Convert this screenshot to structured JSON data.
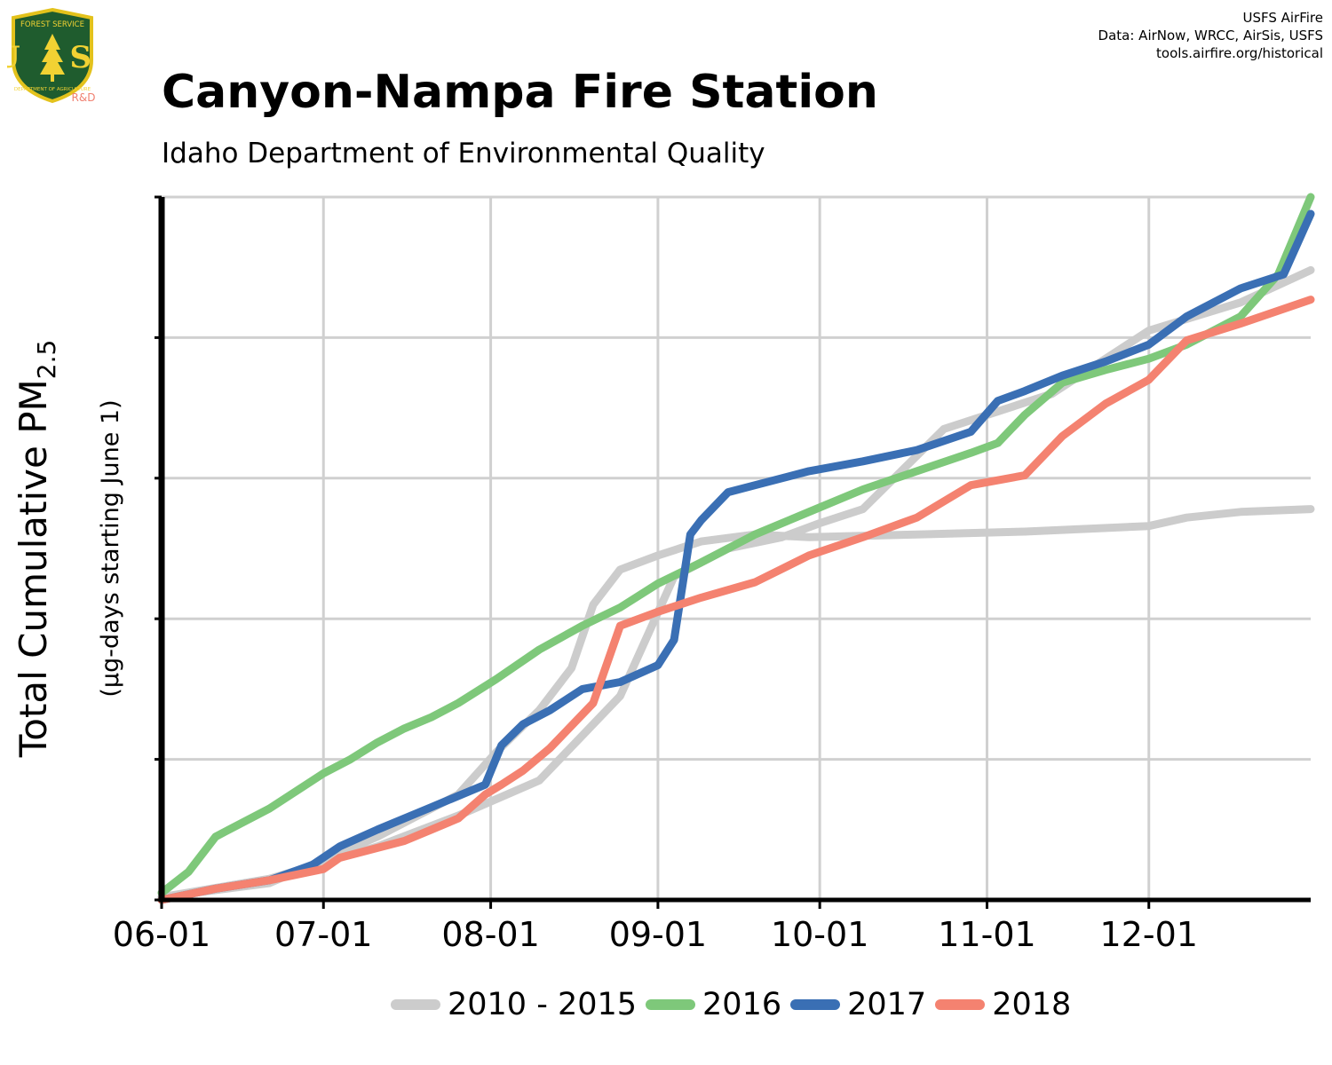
{
  "header": {
    "title": "Canyon-Nampa Fire Station",
    "subtitle": "Idaho Department of Environmental Quality",
    "credits": [
      "USFS AirFire",
      "Data: AirNow, WRCC, AirSis, USFS",
      "tools.airfire.org/historical"
    ]
  },
  "logo": {
    "top_text": "FOREST SERVICE",
    "letters": "U S",
    "bottom_text": "DEPARTMENT OF AGRICULTURE",
    "rd": "R&D",
    "colors": {
      "shield": "#1f5c2e",
      "border": "#e3c21c",
      "text": "#f2d233",
      "rd": "#f08070"
    }
  },
  "chart_data": {
    "type": "line",
    "title": "Canyon-Nampa Fire Station",
    "subtitle": "Idaho Department of Environmental Quality",
    "ylabel_main": "Total Cumulative PM",
    "ylabel_sub": "2.5",
    "ylabel_note": "(µg-days starting June 1)",
    "x_ticks": [
      "06-01",
      "07-01",
      "08-01",
      "09-01",
      "10-01",
      "11-01",
      "12-01"
    ],
    "x_tick_days": [
      0,
      30,
      61,
      92,
      122,
      153,
      183
    ],
    "xlim": [
      0,
      213
    ],
    "ylim": [
      0,
      5
    ],
    "y_tick_count": 6,
    "y_tick_labels_shown": false,
    "grid": true,
    "legend_position": "bottom",
    "x_unit": "days since June 1",
    "background_series": {
      "name": "2010 - 2015",
      "color": "#cccccc",
      "lines": [
        {
          "x": [
            0,
            20,
            40,
            55,
            70,
            85,
            95,
            105,
            115,
            122,
            130,
            145,
            165,
            183,
            200,
            213
          ],
          "y": [
            0.02,
            0.15,
            0.38,
            0.6,
            0.85,
            1.45,
            2.3,
            2.5,
            2.58,
            2.68,
            2.78,
            3.35,
            3.6,
            4.05,
            4.25,
            4.48
          ]
        },
        {
          "x": [
            0,
            20,
            40,
            55,
            62,
            70,
            76,
            80,
            85,
            92,
            100,
            110,
            120,
            140,
            160,
            183,
            190,
            200,
            213
          ],
          "y": [
            0.02,
            0.12,
            0.45,
            0.75,
            1.05,
            1.35,
            1.65,
            2.1,
            2.35,
            2.45,
            2.55,
            2.6,
            2.58,
            2.6,
            2.62,
            2.66,
            2.72,
            2.76,
            2.78
          ]
        }
      ]
    },
    "series": [
      {
        "name": "2016",
        "color": "#7ec87a",
        "x": [
          0,
          5,
          10,
          20,
          30,
          35,
          40,
          45,
          50,
          55,
          62,
          70,
          78,
          85,
          92,
          100,
          110,
          120,
          130,
          140,
          150,
          155,
          160,
          167,
          175,
          183,
          190,
          200,
          207,
          213
        ],
        "y": [
          0.05,
          0.2,
          0.45,
          0.65,
          0.9,
          1.0,
          1.12,
          1.22,
          1.3,
          1.4,
          1.57,
          1.78,
          1.95,
          2.08,
          2.25,
          2.4,
          2.6,
          2.76,
          2.92,
          3.05,
          3.18,
          3.25,
          3.45,
          3.68,
          3.77,
          3.85,
          3.95,
          4.15,
          4.45,
          5.0
        ]
      },
      {
        "name": "2017",
        "color": "#3a6fb4",
        "x": [
          0,
          10,
          20,
          28,
          33,
          40,
          45,
          50,
          55,
          60,
          63,
          67,
          72,
          78,
          85,
          92,
          95,
          98,
          100,
          105,
          110,
          115,
          120,
          130,
          140,
          150,
          155,
          160,
          167,
          175,
          183,
          190,
          200,
          208,
          213
        ],
        "y": [
          0.0,
          0.08,
          0.14,
          0.25,
          0.38,
          0.5,
          0.58,
          0.66,
          0.74,
          0.82,
          1.1,
          1.25,
          1.35,
          1.5,
          1.55,
          1.67,
          1.85,
          2.6,
          2.7,
          2.9,
          2.95,
          3.0,
          3.05,
          3.12,
          3.2,
          3.33,
          3.55,
          3.62,
          3.73,
          3.83,
          3.95,
          4.15,
          4.35,
          4.45,
          4.88
        ]
      },
      {
        "name": "2018",
        "color": "#f48270",
        "x": [
          0,
          10,
          20,
          30,
          33,
          40,
          45,
          50,
          55,
          60,
          63,
          67,
          72,
          80,
          85,
          92,
          100,
          110,
          120,
          130,
          140,
          150,
          160,
          167,
          175,
          183,
          190,
          200,
          213
        ],
        "y": [
          0.0,
          0.08,
          0.14,
          0.22,
          0.3,
          0.37,
          0.42,
          0.5,
          0.58,
          0.75,
          0.82,
          0.92,
          1.08,
          1.4,
          1.95,
          2.05,
          2.15,
          2.26,
          2.45,
          2.58,
          2.72,
          2.95,
          3.02,
          3.3,
          3.53,
          3.7,
          3.98,
          4.1,
          4.27
        ]
      }
    ]
  }
}
